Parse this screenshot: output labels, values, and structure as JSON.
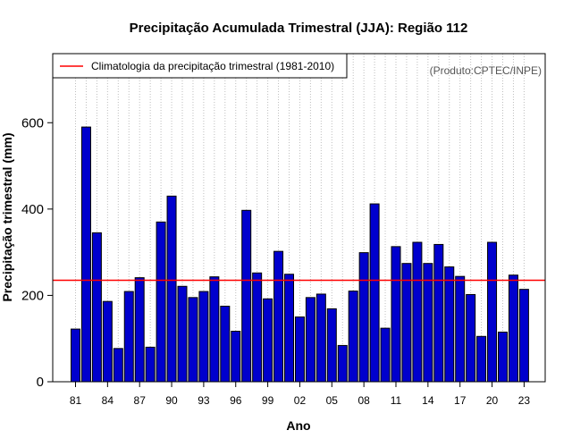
{
  "chart_data": {
    "type": "bar",
    "title": "Precipitação Acumulada Trimestral (JJA): Região 112",
    "xlabel": "Ano",
    "ylabel": "Precipitação trimestral (mm)",
    "credit": "(Produto:CPTEC/INPE)",
    "ylim": [
      0,
      760
    ],
    "yticks": [
      "0",
      "200",
      "400",
      "600"
    ],
    "ytick_values": [
      0,
      200,
      400,
      600
    ],
    "years": [
      1981,
      1982,
      1983,
      1984,
      1985,
      1986,
      1987,
      1988,
      1989,
      1990,
      1991,
      1992,
      1993,
      1994,
      1995,
      1996,
      1997,
      1998,
      1999,
      2000,
      2001,
      2002,
      2003,
      2004,
      2005,
      2006,
      2007,
      2008,
      2009,
      2010,
      2011,
      2012,
      2013,
      2014,
      2015,
      2016,
      2017,
      2018,
      2019,
      2020,
      2021,
      2022,
      2023
    ],
    "values": [
      122,
      590,
      345,
      186,
      77,
      209,
      241,
      80,
      370,
      430,
      221,
      195,
      209,
      243,
      175,
      117,
      397,
      252,
      192,
      302,
      249,
      150,
      195,
      203,
      169,
      84,
      210,
      299,
      412,
      124,
      313,
      274,
      323,
      274,
      318,
      266,
      244,
      202,
      105,
      323,
      115,
      247,
      214
    ],
    "xtick_labels": [
      "81",
      "84",
      "87",
      "90",
      "93",
      "96",
      "99",
      "02",
      "05",
      "08",
      "11",
      "14",
      "17",
      "20",
      "23"
    ],
    "xtick_indices": [
      0,
      3,
      6,
      9,
      12,
      15,
      18,
      21,
      24,
      27,
      30,
      33,
      36,
      39,
      42
    ],
    "climatology": {
      "label": "Climatologia da precipitação trimestral (1981-2010)",
      "value": 235
    },
    "colors": {
      "bar": "#0000cd",
      "climatology": "#ff0000",
      "grid": "#bebebe"
    }
  }
}
